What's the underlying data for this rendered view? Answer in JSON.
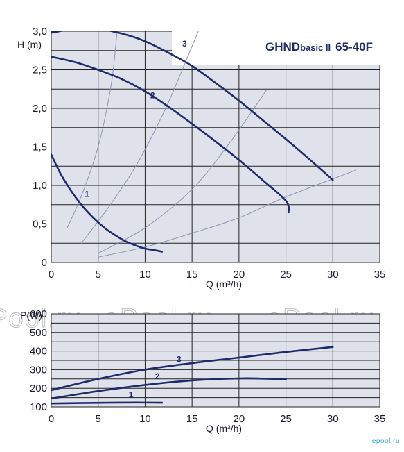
{
  "title": {
    "main": "GHND",
    "sub": "basic II",
    "model": "65-40F"
  },
  "watermark": "ePool.ru",
  "brand": "epool.ru",
  "colors": {
    "grid_bg": "#dfe2ea",
    "grid_line": "#222222",
    "curve": "#1e2b6b",
    "system_curve": "#8a93b0"
  },
  "chart_data": [
    {
      "type": "line",
      "title": "GHNDbasic II 65-40F",
      "ylabel": "H (m)",
      "xlabel": "Q (m³/h)",
      "xlim": [
        0,
        35
      ],
      "ylim": [
        0,
        3.0
      ],
      "x_ticks": [
        "0",
        "5",
        "10",
        "15",
        "20",
        "25",
        "30",
        "35"
      ],
      "y_ticks": [
        "0",
        "0,5",
        "1,0",
        "1,5",
        "2,0",
        "2,5",
        "3,0"
      ],
      "grid": true,
      "series": [
        {
          "name": "1",
          "points": [
            [
              0,
              1.4
            ],
            [
              1,
              1.15
            ],
            [
              2,
              0.95
            ],
            [
              3,
              0.78
            ],
            [
              4,
              0.64
            ],
            [
              5,
              0.52
            ],
            [
              6,
              0.42
            ],
            [
              7,
              0.34
            ],
            [
              8,
              0.27
            ],
            [
              9,
              0.22
            ],
            [
              10,
              0.18
            ],
            [
              11,
              0.16
            ],
            [
              11.8,
              0.14
            ]
          ]
        },
        {
          "name": "2",
          "points": [
            [
              0,
              2.67
            ],
            [
              2.5,
              2.6
            ],
            [
              5,
              2.5
            ],
            [
              7.5,
              2.38
            ],
            [
              10,
              2.22
            ],
            [
              12.5,
              2.02
            ],
            [
              15,
              1.8
            ],
            [
              17.5,
              1.57
            ],
            [
              20,
              1.33
            ],
            [
              22.5,
              1.07
            ],
            [
              25,
              0.8
            ],
            [
              25.3,
              0.65
            ]
          ]
        },
        {
          "name": "3",
          "points": [
            [
              0,
              2.98
            ],
            [
              2.5,
              3.03
            ],
            [
              5,
              3.03
            ],
            [
              7.5,
              2.97
            ],
            [
              10,
              2.87
            ],
            [
              12.5,
              2.72
            ],
            [
              15,
              2.55
            ],
            [
              17.5,
              2.33
            ],
            [
              20,
              2.1
            ],
            [
              22.5,
              1.85
            ],
            [
              25,
              1.6
            ],
            [
              27.5,
              1.34
            ],
            [
              30,
              1.07
            ]
          ]
        }
      ],
      "system_curves": [
        [
          [
            1.7,
            0.45
          ],
          [
            3,
            0.8
          ],
          [
            4.5,
            1.3
          ],
          [
            5.5,
            1.75
          ],
          [
            6.5,
            2.4
          ],
          [
            7.2,
            3.25
          ]
        ],
        [
          [
            3.2,
            0.25
          ],
          [
            6,
            0.7
          ],
          [
            9,
            1.25
          ],
          [
            12,
            1.95
          ],
          [
            14.3,
            2.6
          ],
          [
            16,
            3.1
          ]
        ],
        [
          [
            5,
            0.12
          ],
          [
            10,
            0.45
          ],
          [
            15,
            0.95
          ],
          [
            19,
            1.55
          ],
          [
            23,
            2.25
          ]
        ],
        [
          [
            5,
            0.07
          ],
          [
            10,
            0.2
          ],
          [
            15,
            0.38
          ],
          [
            20,
            0.58
          ],
          [
            25,
            0.85
          ],
          [
            32.5,
            1.2
          ]
        ]
      ],
      "curve_labels": [
        {
          "text": "1",
          "x": 3.8,
          "y": 0.85
        },
        {
          "text": "2",
          "x": 10.8,
          "y": 2.13
        },
        {
          "text": "3",
          "x": 14.2,
          "y": 2.8
        }
      ]
    },
    {
      "type": "line",
      "ylabel": "P(W)",
      "xlabel": "Q (m³/h)",
      "xlim": [
        0,
        35
      ],
      "ylim": [
        100,
        600
      ],
      "x_ticks": [
        "0",
        "5",
        "10",
        "15",
        "20",
        "25",
        "30",
        "35"
      ],
      "y_ticks": [
        "100",
        "200",
        "300",
        "400",
        "500",
        "600"
      ],
      "grid": true,
      "series": [
        {
          "name": "1",
          "points": [
            [
              0,
              118
            ],
            [
              3,
              120
            ],
            [
              6,
              122
            ],
            [
              9,
              123
            ],
            [
              11.8,
              122
            ]
          ]
        },
        {
          "name": "2",
          "points": [
            [
              0,
              145
            ],
            [
              5,
              185
            ],
            [
              10,
              218
            ],
            [
              15,
              242
            ],
            [
              20,
              253
            ],
            [
              22.5,
              252
            ],
            [
              25,
              248
            ]
          ]
        },
        {
          "name": "3",
          "points": [
            [
              0,
              190
            ],
            [
              5,
              250
            ],
            [
              10,
              300
            ],
            [
              15,
              335
            ],
            [
              20,
              365
            ],
            [
              25,
              395
            ],
            [
              30,
              422
            ]
          ]
        }
      ],
      "curve_labels": [
        {
          "text": "1",
          "x": 8.5,
          "y": 150
        },
        {
          "text": "2",
          "x": 11.3,
          "y": 250
        },
        {
          "text": "3",
          "x": 13.6,
          "y": 340
        }
      ]
    }
  ]
}
